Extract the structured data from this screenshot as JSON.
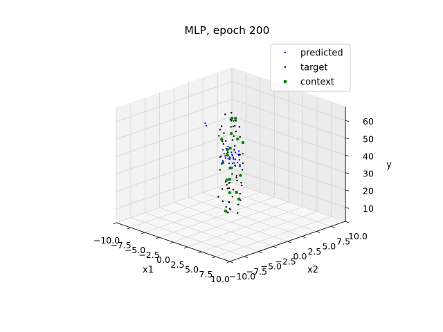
{
  "chart_data": {
    "type": "scatter",
    "projection": "3d",
    "title": "MLP, epoch 200",
    "xlabel": "x1",
    "ylabel": "x2",
    "zlabel": "y",
    "xlim": [
      -10.0,
      10.0
    ],
    "ylim": [
      -10.0,
      10.0
    ],
    "zlim": [
      2,
      68
    ],
    "x_ticks": [
      "−10.0",
      "−7.5",
      "−5.0",
      "−2.5",
      "0.0",
      "2.5",
      "5.0",
      "7.5",
      "10.0"
    ],
    "y_ticks": [
      "−10.0",
      "−7.5",
      "−5.0",
      "−2.5",
      "0.0",
      "2.5",
      "5.0",
      "7.5",
      "10.0"
    ],
    "z_ticks": [
      "10",
      "20",
      "30",
      "40",
      "50",
      "60"
    ],
    "grid": true,
    "legend_position": "top-right",
    "series": [
      {
        "name": "predicted",
        "color": "#0000ff",
        "marker_size": 1.1,
        "points": [
          [
            -1.5,
            -0.4,
            38.0
          ],
          [
            -1.2,
            0.0,
            40.0
          ],
          [
            -1.0,
            0.3,
            42.5
          ],
          [
            -0.8,
            -0.6,
            37.0
          ],
          [
            -0.6,
            0.1,
            39.5
          ],
          [
            -0.4,
            0.5,
            41.0
          ],
          [
            -0.2,
            -0.3,
            38.5
          ],
          [
            0.0,
            0.2,
            40.5
          ],
          [
            0.2,
            -0.5,
            36.5
          ],
          [
            0.4,
            0.4,
            42.0
          ],
          [
            0.6,
            -0.1,
            39.0
          ],
          [
            0.8,
            0.6,
            43.0
          ],
          [
            1.0,
            -0.4,
            37.5
          ],
          [
            1.2,
            0.2,
            41.5
          ],
          [
            1.4,
            -0.2,
            38.0
          ],
          [
            1.6,
            0.5,
            42.5
          ],
          [
            -1.4,
            0.6,
            39.0
          ],
          [
            -1.1,
            -0.2,
            35.5
          ],
          [
            -0.9,
            0.4,
            44.0
          ],
          [
            -0.5,
            -0.5,
            40.0
          ],
          [
            -0.3,
            0.7,
            38.0
          ],
          [
            0.1,
            -0.7,
            41.0
          ],
          [
            0.3,
            0.0,
            36.0
          ],
          [
            0.5,
            0.8,
            40.5
          ],
          [
            0.9,
            -0.6,
            42.0
          ],
          [
            1.1,
            0.4,
            38.5
          ],
          [
            1.3,
            -0.5,
            40.0
          ],
          [
            1.5,
            0.1,
            36.5
          ],
          [
            -1.6,
            0.2,
            41.5
          ],
          [
            -0.7,
            -0.1,
            43.5
          ],
          [
            0.7,
            0.1,
            35.0
          ],
          [
            -8.9,
            4.3,
            44.0
          ],
          [
            -8.8,
            4.4,
            42.5
          ]
        ]
      },
      {
        "name": "target",
        "color": "#000000",
        "marker_size": 1.2,
        "points": [
          [
            -1.2,
            -0.3,
            20.0
          ],
          [
            -0.8,
            0.5,
            12.0
          ],
          [
            0.5,
            -0.8,
            15.0
          ],
          [
            1.1,
            0.7,
            25.0
          ],
          [
            -0.3,
            1.0,
            33.0
          ],
          [
            0.9,
            -0.2,
            47.0
          ],
          [
            -1.0,
            -0.9,
            55.0
          ],
          [
            0.2,
            0.3,
            60.0
          ],
          [
            1.4,
            -1.1,
            52.0
          ],
          [
            -0.6,
            0.8,
            28.0
          ],
          [
            0.0,
            -0.5,
            8.0
          ],
          [
            -1.5,
            0.2,
            45.0
          ],
          [
            1.2,
            0.4,
            35.0
          ],
          [
            -0.4,
            -1.2,
            58.0
          ],
          [
            0.7,
            0.9,
            18.0
          ],
          [
            -0.9,
            -0.1,
            63.0
          ],
          [
            0.4,
            1.2,
            50.0
          ],
          [
            1.6,
            -0.6,
            30.0
          ],
          [
            -1.3,
            1.1,
            22.0
          ],
          [
            0.1,
            -1.0,
            40.0
          ],
          [
            -0.2,
            0.6,
            56.0
          ],
          [
            1.0,
            -1.3,
            27.0
          ],
          [
            -0.7,
            -0.7,
            14.0
          ],
          [
            0.8,
            0.1,
            61.0
          ],
          [
            -1.1,
            0.9,
            37.0
          ],
          [
            0.3,
            -0.4,
            10.0
          ],
          [
            1.3,
            0.8,
            48.0
          ],
          [
            -0.5,
            -0.2,
            23.0
          ],
          [
            0.6,
            -1.1,
            44.0
          ],
          [
            -1.4,
            -0.5,
            31.0
          ],
          [
            0.0,
            0.9,
            53.0
          ],
          [
            1.5,
            0.2,
            16.0
          ],
          [
            -0.1,
            -0.8,
            26.0
          ],
          [
            0.9,
            0.6,
            57.0
          ],
          [
            -1.0,
            0.4,
            6.0
          ],
          [
            0.5,
            -0.3,
            34.0
          ],
          [
            -0.8,
            1.3,
            49.0
          ],
          [
            1.2,
            -0.9,
            19.0
          ],
          [
            -0.3,
            -1.4,
            41.0
          ],
          [
            0.7,
            0.3,
            29.0
          ],
          [
            -1.6,
            0.7,
            46.0
          ],
          [
            0.2,
            1.1,
            11.0
          ],
          [
            1.1,
            -0.4,
            59.0
          ],
          [
            -0.6,
            -1.0,
            36.0
          ],
          [
            0.4,
            0.0,
            21.0
          ],
          [
            -1.2,
            1.2,
            54.0
          ],
          [
            1.4,
            0.5,
            24.0
          ],
          [
            -0.4,
            0.2,
            9.0
          ],
          [
            0.8,
            -0.7,
            62.0
          ],
          [
            -0.9,
            -1.3,
            17.0
          ],
          [
            0.1,
            0.5,
            43.0
          ],
          [
            1.0,
            1.0,
            32.0
          ],
          [
            -1.3,
            -0.8,
            51.0
          ],
          [
            0.6,
            -1.4,
            13.0
          ],
          [
            -0.2,
            0.0,
            38.0
          ],
          [
            1.3,
            -0.2,
            27.5
          ],
          [
            -0.7,
            0.6,
            59.5
          ],
          [
            0.3,
            -0.6,
            22.5
          ],
          [
            -1.1,
            -0.4,
            47.5
          ],
          [
            0.9,
            1.2,
            35.5
          ],
          [
            0.0,
            -1.2,
            54.5
          ],
          [
            -1.5,
            0.9,
            18.5
          ],
          [
            1.6,
            0.0,
            42.5
          ],
          [
            -0.3,
            0.4,
            64.0
          ],
          [
            0.5,
            0.7,
            7.0
          ]
        ]
      },
      {
        "name": "context",
        "color": "#008000",
        "marker_size": 2.2,
        "points": [
          [
            0.2,
            -0.3,
            45.0
          ],
          [
            -0.8,
            0.6,
            25.0
          ],
          [
            1.0,
            -0.9,
            55.0
          ],
          [
            -1.2,
            -0.2,
            35.0
          ],
          [
            0.6,
            0.8,
            15.0
          ],
          [
            -0.3,
            1.1,
            60.0
          ],
          [
            1.4,
            0.3,
            30.0
          ],
          [
            -0.6,
            -1.0,
            50.0
          ],
          [
            0.9,
            0.1,
            20.0
          ],
          [
            -1.0,
            0.4,
            42.0
          ],
          [
            0.3,
            -1.2,
            10.0
          ],
          [
            1.2,
            0.9,
            48.0
          ],
          [
            -0.1,
            0.0,
            33.0
          ],
          [
            0.7,
            -0.5,
            63.0
          ],
          [
            -1.4,
            0.8,
            38.0
          ],
          [
            0.0,
            -0.7,
            27.0
          ],
          [
            1.6,
            -0.4,
            52.0
          ],
          [
            -0.5,
            0.3,
            18.0
          ]
        ]
      }
    ]
  }
}
